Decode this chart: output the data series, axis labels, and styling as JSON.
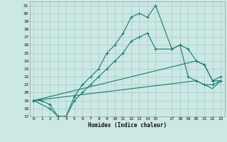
{
  "xlabel": "Humidex (Indice chaleur)",
  "bg_color": "#cce8e4",
  "grid_color": "#aad0c8",
  "line_color": "#1a7a6e",
  "xlim": [
    -0.5,
    23.5
  ],
  "ylim": [
    17,
    31.5
  ],
  "xticks": [
    0,
    1,
    2,
    3,
    4,
    5,
    6,
    7,
    8,
    9,
    10,
    11,
    12,
    13,
    14,
    15,
    17,
    18,
    19,
    20,
    21,
    22,
    23
  ],
  "yticks": [
    17,
    18,
    19,
    20,
    21,
    22,
    23,
    24,
    25,
    26,
    27,
    28,
    29,
    30,
    31
  ],
  "line1_x": [
    0,
    1,
    2,
    3,
    4,
    5,
    6,
    7,
    8,
    9,
    10,
    11,
    12,
    13,
    14,
    15,
    17,
    18,
    19,
    20,
    21,
    22,
    23
  ],
  "line1_y": [
    19,
    19,
    18.5,
    17,
    17,
    19.5,
    21,
    22,
    23,
    25,
    26,
    27.5,
    29.5,
    30,
    29.5,
    31,
    25.5,
    26,
    25.5,
    24,
    23.5,
    21.5,
    22
  ],
  "line2_x": [
    0,
    2,
    3,
    4,
    5,
    6,
    7,
    8,
    9,
    10,
    11,
    12,
    13,
    14,
    15,
    17,
    18,
    19,
    20,
    21,
    22,
    23
  ],
  "line2_y": [
    19,
    18,
    17,
    17,
    19,
    20,
    21,
    22,
    23,
    24,
    25,
    26.5,
    27,
    27.5,
    25.5,
    25.5,
    26,
    22,
    21.5,
    21,
    21,
    21.5
  ],
  "line3_x": [
    0,
    20,
    21,
    22,
    23
  ],
  "line3_y": [
    19,
    24,
    23.5,
    21.5,
    21.5
  ],
  "line4_x": [
    0,
    20,
    22,
    23
  ],
  "line4_y": [
    19,
    21.5,
    20.5,
    21.5
  ]
}
